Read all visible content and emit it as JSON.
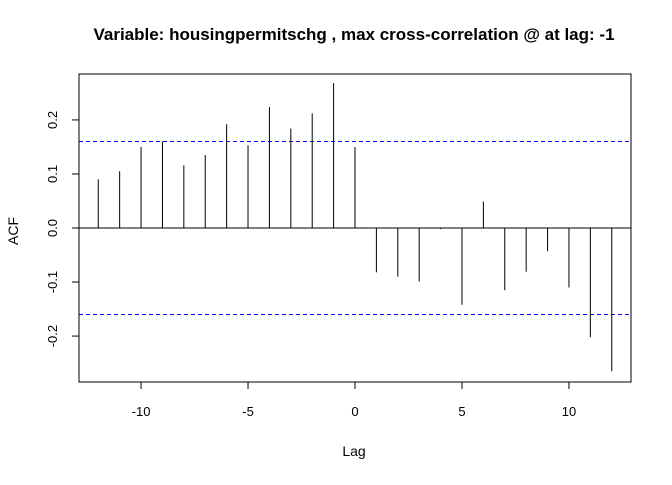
{
  "chart_data": {
    "type": "bar",
    "title": "Variable: housingpermitschg , max cross-correlation @ at lag: -1",
    "xlabel": "Lag",
    "ylabel": "ACF",
    "xlim": [
      -12.9,
      12.9
    ],
    "ylim": [
      -0.285,
      0.285
    ],
    "x_ticks": [
      -10,
      -5,
      0,
      5,
      10
    ],
    "x_tick_labels": [
      "-10",
      "-5",
      "0",
      "5",
      "10"
    ],
    "y_ticks": [
      -0.2,
      -0.1,
      0.0,
      0.1,
      0.2
    ],
    "y_tick_labels": [
      "-0.2",
      "-0.1",
      "0.0",
      "0.1",
      "0.2"
    ],
    "confidence_bounds": [
      0.16,
      -0.16
    ],
    "confidence_color": "#0000ff",
    "bar_color": "#000000",
    "lags": [
      -12,
      -11,
      -10,
      -9,
      -8,
      -7,
      -6,
      -5,
      -4,
      -3,
      -2,
      -1,
      0,
      1,
      2,
      3,
      4,
      5,
      6,
      7,
      8,
      9,
      10,
      11,
      12
    ],
    "values": [
      0.09,
      0.105,
      0.15,
      0.16,
      0.116,
      0.135,
      0.192,
      0.153,
      0.224,
      0.184,
      0.212,
      0.268,
      0.15,
      -0.082,
      -0.09,
      -0.099,
      -0.002,
      -0.142,
      0.049,
      -0.115,
      -0.081,
      -0.043,
      -0.11,
      -0.202,
      -0.265
    ],
    "grid": false,
    "legend": "none"
  }
}
